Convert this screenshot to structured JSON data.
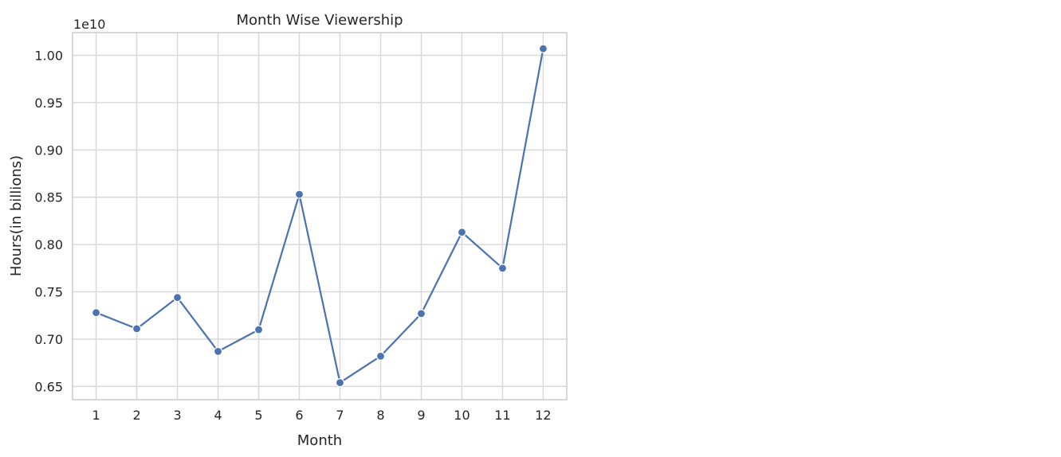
{
  "chart_data": {
    "type": "line",
    "title": "Month Wise Viewership",
    "xlabel": "Month",
    "ylabel": "Hours(in billions)",
    "y_offset_label": "1e10",
    "x": [
      1,
      2,
      3,
      4,
      5,
      6,
      7,
      8,
      9,
      10,
      11,
      12
    ],
    "x_tick_labels": [
      "1",
      "2",
      "3",
      "4",
      "5",
      "6",
      "7",
      "8",
      "9",
      "10",
      "11",
      "12"
    ],
    "series": [
      {
        "values": [
          7280000000,
          7110000000,
          7440000000,
          6870000000,
          7100000000,
          8530000000,
          6540000000,
          6820000000,
          7270000000,
          8130000000,
          7750000000,
          10070000000
        ],
        "color": "#4c72b0",
        "marker": "circle"
      }
    ],
    "y_ticks": [
      6500000000,
      7000000000,
      7500000000,
      8000000000,
      8500000000,
      9000000000,
      9500000000,
      10000000000
    ],
    "y_tick_labels": [
      "0.65",
      "0.70",
      "0.75",
      "0.80",
      "0.85",
      "0.90",
      "0.95",
      "1.00"
    ],
    "xlim": [
      0.42,
      12.58
    ],
    "ylim": [
      6360000000,
      10240000000
    ],
    "grid": true,
    "style": {
      "background": "#ffffff",
      "grid_color": "#d9d9d9",
      "spine_color": "#cccccc",
      "text_color": "#262626"
    }
  }
}
